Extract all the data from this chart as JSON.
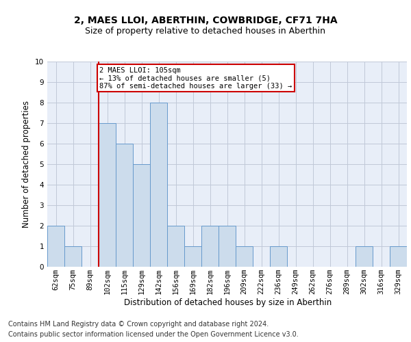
{
  "title": "2, MAES LLOI, ABERTHIN, COWBRIDGE, CF71 7HA",
  "subtitle": "Size of property relative to detached houses in Aberthin",
  "xlabel": "Distribution of detached houses by size in Aberthin",
  "ylabel": "Number of detached properties",
  "footer_line1": "Contains HM Land Registry data © Crown copyright and database right 2024.",
  "footer_line2": "Contains public sector information licensed under the Open Government Licence v3.0.",
  "bin_labels": [
    "62sqm",
    "75sqm",
    "89sqm",
    "102sqm",
    "115sqm",
    "129sqm",
    "142sqm",
    "156sqm",
    "169sqm",
    "182sqm",
    "196sqm",
    "209sqm",
    "222sqm",
    "236sqm",
    "249sqm",
    "262sqm",
    "276sqm",
    "289sqm",
    "302sqm",
    "316sqm",
    "329sqm"
  ],
  "bar_heights": [
    2,
    1,
    0,
    7,
    6,
    5,
    8,
    2,
    1,
    2,
    2,
    1,
    0,
    1,
    0,
    0,
    0,
    0,
    1,
    0,
    1
  ],
  "bar_color": "#ccdcec",
  "bar_edge_color": "#6699cc",
  "property_size_label": "105sqm",
  "vline_index": 3,
  "vline_color": "#cc0000",
  "annotation_line1": "2 MAES LLOI: 105sqm",
  "annotation_line2": "← 13% of detached houses are smaller (5)",
  "annotation_line3": "87% of semi-detached houses are larger (33) →",
  "annotation_box_color": "#cc0000",
  "ylim": [
    0,
    10
  ],
  "yticks": [
    0,
    1,
    2,
    3,
    4,
    5,
    6,
    7,
    8,
    9,
    10
  ],
  "bg_color": "#e8eef8",
  "grid_color": "#c0c8d8",
  "title_fontsize": 10,
  "subtitle_fontsize": 9,
  "axis_label_fontsize": 8.5,
  "tick_fontsize": 7.5,
  "annotation_fontsize": 7.5,
  "footer_fontsize": 7
}
